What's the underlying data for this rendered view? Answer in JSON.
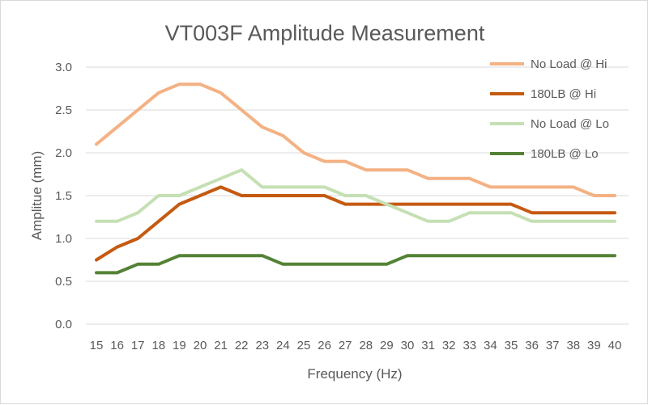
{
  "chart_data": {
    "type": "line",
    "title": "VT003F Amplitude Measurement",
    "xlabel": "Frequency (Hz)",
    "ylabel": "Amplitue (mm)",
    "categories": [
      "15",
      "16",
      "17",
      "18",
      "19",
      "20",
      "21",
      "22",
      "23",
      "24",
      "25",
      "26",
      "27",
      "28",
      "29",
      "30",
      "31",
      "32",
      "33",
      "34",
      "35",
      "36",
      "37",
      "38",
      "39",
      "40"
    ],
    "yticks": [
      "0.0",
      "0.5",
      "1.0",
      "1.5",
      "2.0",
      "2.5",
      "3.0"
    ],
    "ylim": [
      0,
      3.0
    ],
    "grid": true,
    "legend_position": "right",
    "series": [
      {
        "name": "No Load @ Hi",
        "color": "#f4b183",
        "values": [
          2.1,
          2.3,
          2.5,
          2.7,
          2.8,
          2.8,
          2.7,
          2.5,
          2.3,
          2.2,
          2.0,
          1.9,
          1.9,
          1.8,
          1.8,
          1.8,
          1.7,
          1.7,
          1.7,
          1.6,
          1.6,
          1.6,
          1.6,
          1.6,
          1.5,
          1.5
        ]
      },
      {
        "name": "180LB  @ Hi",
        "color": "#c55a11",
        "values": [
          0.75,
          0.9,
          1.0,
          1.2,
          1.4,
          1.5,
          1.6,
          1.5,
          1.5,
          1.5,
          1.5,
          1.5,
          1.4,
          1.4,
          1.4,
          1.4,
          1.4,
          1.4,
          1.4,
          1.4,
          1.4,
          1.3,
          1.3,
          1.3,
          1.3,
          1.3
        ]
      },
      {
        "name": "No Load @ Lo",
        "color": "#c5e0b4",
        "values": [
          1.2,
          1.2,
          1.3,
          1.5,
          1.5,
          1.6,
          1.7,
          1.8,
          1.6,
          1.6,
          1.6,
          1.6,
          1.5,
          1.5,
          1.4,
          1.3,
          1.2,
          1.2,
          1.3,
          1.3,
          1.3,
          1.2,
          1.2,
          1.2,
          1.2,
          1.2
        ]
      },
      {
        "name": "180LB @ Lo",
        "color": "#548235",
        "values": [
          0.6,
          0.6,
          0.7,
          0.7,
          0.8,
          0.8,
          0.8,
          0.8,
          0.8,
          0.7,
          0.7,
          0.7,
          0.7,
          0.7,
          0.7,
          0.8,
          0.8,
          0.8,
          0.8,
          0.8,
          0.8,
          0.8,
          0.8,
          0.8,
          0.8,
          0.8
        ]
      }
    ]
  }
}
